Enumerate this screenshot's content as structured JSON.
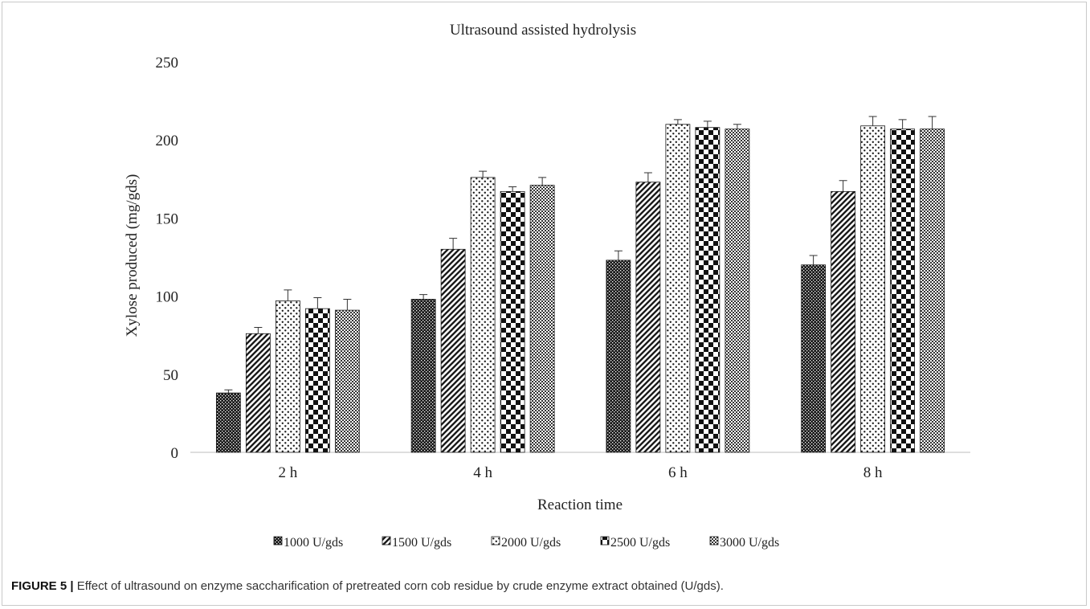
{
  "chart_data": {
    "type": "bar",
    "title": "Ultrasound assisted hydrolysis",
    "xlabel": "Reaction time",
    "ylabel": "Xylose produced (mg/gds)",
    "ylim": [
      0,
      250
    ],
    "yticks": [
      0,
      50,
      100,
      150,
      200,
      250
    ],
    "grid": false,
    "legend_position": "bottom",
    "categories": [
      "2 h",
      "4 h",
      "6 h",
      "8 h"
    ],
    "series": [
      {
        "name": "1000 U/gds",
        "pattern": "dense-dots",
        "values": [
          38,
          98,
          123,
          120
        ],
        "errors": [
          2,
          3,
          6,
          6
        ]
      },
      {
        "name": "1500 U/gds",
        "pattern": "diagonal-stripes",
        "values": [
          76,
          130,
          173,
          167
        ],
        "errors": [
          4,
          7,
          6,
          7
        ]
      },
      {
        "name": "2000 U/gds",
        "pattern": "sparse-dots",
        "values": [
          97,
          176,
          210,
          209
        ],
        "errors": [
          7,
          4,
          3,
          6
        ]
      },
      {
        "name": "2500 U/gds",
        "pattern": "large-checker",
        "values": [
          92,
          167,
          208,
          207
        ],
        "errors": [
          7,
          3,
          4,
          6
        ]
      },
      {
        "name": "3000 U/gds",
        "pattern": "small-checker",
        "values": [
          91,
          171,
          207,
          207
        ],
        "errors": [
          7,
          5,
          3,
          8
        ]
      }
    ]
  },
  "caption": {
    "label": "FIGURE 5 |",
    "text": " Effect of ultrasound on enzyme saccharification of pretreated corn cob residue by crude enzyme extract obtained (U/gds)."
  }
}
